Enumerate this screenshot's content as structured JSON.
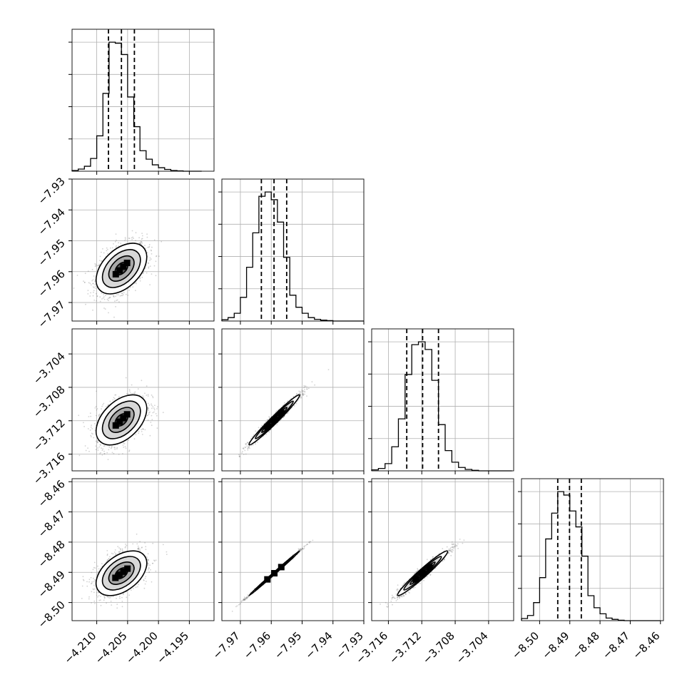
{
  "chart_data": {
    "type": "corner",
    "grid": true,
    "quantiles": [
      0.16,
      0.5,
      0.84
    ],
    "params": [
      {
        "id": "p0",
        "range": [
          -4.214,
          -4.191
        ],
        "ticks": [
          -4.21,
          -4.205,
          -4.2,
          -4.195
        ],
        "tick_labels": [
          "−4.210",
          "−4.205",
          "−4.200",
          "−4.195"
        ],
        "mean": -4.206,
        "sd": 0.00205,
        "quantile_values": [
          -4.2081,
          -4.206,
          -4.2039
        ],
        "hist_bins": [
          -4.214,
          -4.213,
          -4.212,
          -4.211,
          -4.21,
          -4.209,
          -4.208,
          -4.207,
          -4.206,
          -4.205,
          -4.204,
          -4.203,
          -4.202,
          -4.201,
          -4.2,
          -4.199,
          -4.198,
          -4.197,
          -4.196,
          -4.195,
          -4.194,
          -4.193
        ],
        "hist_counts": [
          2,
          6,
          14,
          36,
          100,
          220,
          365,
          362,
          330,
          210,
          126,
          58,
          34,
          18,
          10,
          5,
          2,
          1,
          0,
          0,
          0
        ]
      },
      {
        "id": "p1",
        "range": [
          -7.976,
          -7.93
        ],
        "ticks": [
          -7.97,
          -7.96,
          -7.95,
          -7.94,
          -7.93
        ],
        "tick_labels": [
          "−7.97",
          "−7.96",
          "−7.95",
          "−7.94",
          "−7.93"
        ],
        "mean": -7.959,
        "sd": 0.0041,
        "quantile_values": [
          -7.9632,
          -7.9591,
          -7.955
        ],
        "hist_bins": [
          -7.976,
          -7.974,
          -7.972,
          -7.97,
          -7.968,
          -7.966,
          -7.964,
          -7.962,
          -7.96,
          -7.958,
          -7.956,
          -7.954,
          -7.952,
          -7.95,
          -7.948,
          -7.946,
          -7.944,
          -7.942,
          -7.94,
          -7.938,
          -7.936,
          -7.934,
          -7.932,
          -7.93
        ],
        "hist_counts": [
          3,
          8,
          18,
          55,
          125,
          205,
          290,
          300,
          282,
          230,
          148,
          60,
          32,
          18,
          8,
          4,
          2,
          1,
          0,
          0,
          0,
          0,
          0
        ]
      },
      {
        "id": "p2",
        "range": [
          -3.718,
          -3.701
        ],
        "ticks": [
          -3.716,
          -3.712,
          -3.708,
          -3.704
        ],
        "tick_labels": [
          "−3.716",
          "−3.712",
          "−3.708",
          "−3.704"
        ],
        "mean": -3.7119,
        "sd": 0.0015,
        "quantile_values": [
          -3.7138,
          -3.7119,
          -3.71
        ],
        "hist_bins": [
          -3.718,
          -3.7172,
          -3.7164,
          -3.7156,
          -3.7148,
          -3.714,
          -3.7132,
          -3.7124,
          -3.7116,
          -3.7108,
          -3.71,
          -3.7092,
          -3.7084,
          -3.7076,
          -3.7068,
          -3.706,
          -3.7052,
          -3.7044,
          -3.7036,
          -3.7028,
          -3.702,
          -3.7012
        ],
        "hist_counts": [
          2,
          5,
          15,
          50,
          108,
          200,
          262,
          268,
          252,
          188,
          96,
          42,
          18,
          7,
          3,
          1,
          0,
          0,
          0,
          0,
          0
        ]
      },
      {
        "id": "p3",
        "range": [
          -8.506,
          -8.459
        ],
        "ticks": [
          -8.5,
          -8.49,
          -8.48,
          -8.47,
          -8.46
        ],
        "tick_labels": [
          "−8.50",
          "−8.49",
          "−8.48",
          "−8.47",
          "−8.46"
        ],
        "mean": -8.4903,
        "sd": 0.0037,
        "quantile_values": [
          -8.494,
          -8.4901,
          -8.4862
        ],
        "hist_bins": [
          -8.506,
          -8.504,
          -8.502,
          -8.5,
          -8.498,
          -8.496,
          -8.494,
          -8.492,
          -8.49,
          -8.488,
          -8.486,
          -8.484,
          -8.482,
          -8.48,
          -8.478,
          -8.476,
          -8.474,
          -8.472,
          -8.47,
          -8.468,
          -8.466,
          -8.464,
          -8.462,
          -8.46
        ],
        "hist_counts": [
          5,
          12,
          42,
          100,
          190,
          250,
          300,
          292,
          255,
          218,
          150,
          58,
          30,
          16,
          6,
          3,
          1,
          0,
          0,
          0,
          0,
          0,
          0
        ]
      }
    ],
    "correlations": {
      "p0-p1": 0.45,
      "p0-p2": 0.45,
      "p0-p3": 0.45,
      "p1-p2": 0.98,
      "p1-p3": 0.998,
      "p2-p3": 0.97
    },
    "contour_levels_sigma": [
      0.5,
      1.0,
      1.5,
      2.0
    ],
    "colors": {
      "line": "#000000",
      "grid": "#b0b0b0",
      "scatter": "#7f7f7f"
    }
  }
}
